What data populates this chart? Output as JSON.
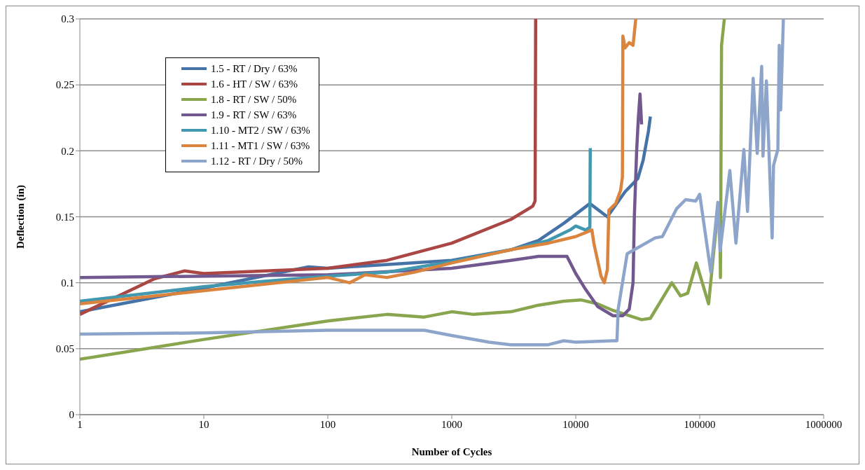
{
  "chart_data": {
    "type": "line",
    "xlabel": "Number of Cycles",
    "ylabel": "Deflection (in)",
    "log": "x",
    "grid": "y",
    "legend": "top left",
    "marker": "none",
    "line_style": "solid",
    "xlim": [
      1,
      1000000
    ],
    "xticks": [
      1,
      10,
      100,
      1000,
      10000,
      100000,
      1000000
    ],
    "ylim": [
      0,
      0.3
    ],
    "yticks": [
      0,
      0.05,
      0.1,
      0.15,
      0.2,
      0.25,
      0.3
    ],
    "series": [
      {
        "name": "1.5 - RT / Dry / 63%",
        "color": "#4572a7",
        "x": [
          1,
          10,
          70,
          100,
          1000,
          3000,
          5000,
          8000,
          13000,
          18000,
          25000,
          31700,
          35000,
          38600,
          40000
        ],
        "values": [
          0.078,
          0.096,
          0.112,
          0.111,
          0.117,
          0.125,
          0.132,
          0.145,
          0.16,
          0.15,
          0.169,
          0.179,
          0.193,
          0.215,
          0.226
        ]
      },
      {
        "name": "1.6 - HT / SW / 63%",
        "color": "#aa4643",
        "x": [
          1,
          4,
          7,
          10,
          100,
          300,
          1000,
          3000,
          4500,
          4700,
          4750
        ],
        "values": [
          0.076,
          0.103,
          0.109,
          0.107,
          0.111,
          0.117,
          0.13,
          0.148,
          0.158,
          0.162,
          0.3
        ]
      },
      {
        "name": "1.8 - RT / SW / 50%",
        "color": "#89a54e",
        "x": [
          1,
          10,
          100,
          300,
          600,
          1000,
          1500,
          3000,
          5000,
          8000,
          11000,
          15000,
          20000,
          34000,
          40000,
          59600,
          70000,
          80000,
          94000,
          118000,
          140000,
          145000,
          147000,
          150000,
          158000
        ],
        "values": [
          0.042,
          0.057,
          0.071,
          0.076,
          0.074,
          0.078,
          0.076,
          0.078,
          0.083,
          0.086,
          0.087,
          0.084,
          0.079,
          0.072,
          0.073,
          0.1,
          0.09,
          0.092,
          0.115,
          0.084,
          0.155,
          0.16,
          0.104,
          0.28,
          0.3
        ]
      },
      {
        "name": "1.9 - RT / SW / 63%",
        "color": "#71588f",
        "x": [
          1,
          100,
          1000,
          3000,
          5000,
          8500,
          10000,
          12000,
          15000,
          20000,
          24000,
          27000,
          29000,
          29700,
          31000,
          32000,
          33000,
          34000
        ],
        "values": [
          0.104,
          0.106,
          0.111,
          0.117,
          0.12,
          0.12,
          0.107,
          0.095,
          0.082,
          0.075,
          0.075,
          0.08,
          0.1,
          0.15,
          0.2,
          0.225,
          0.243,
          0.22
        ]
      },
      {
        "name": "1.10 - MT2 / SW / 63%",
        "color": "#4198af",
        "x": [
          1,
          10,
          30,
          100,
          300,
          1000,
          3000,
          6000,
          9000,
          10000,
          12000,
          13000,
          13100
        ],
        "values": [
          0.086,
          0.097,
          0.101,
          0.105,
          0.108,
          0.116,
          0.125,
          0.132,
          0.14,
          0.143,
          0.14,
          0.142,
          0.202
        ]
      },
      {
        "name": "1.11 - MT1 / SW / 63%",
        "color": "#db843d",
        "x": [
          1,
          10,
          100,
          150,
          200,
          300,
          500,
          1000,
          3000,
          6000,
          10000,
          13500,
          14000,
          16000,
          17000,
          18000,
          18500,
          21000,
          23000,
          23800,
          24000,
          25000,
          27000,
          29000,
          30500
        ],
        "values": [
          0.084,
          0.094,
          0.104,
          0.1,
          0.106,
          0.104,
          0.108,
          0.115,
          0.125,
          0.13,
          0.135,
          0.14,
          0.13,
          0.105,
          0.1,
          0.11,
          0.155,
          0.16,
          0.17,
          0.18,
          0.287,
          0.278,
          0.282,
          0.28,
          0.3
        ]
      },
      {
        "name": "1.12 - RT / Dry / 50%",
        "color": "#8ea5cb",
        "x": [
          1,
          10,
          100,
          600,
          1000,
          2000,
          3000,
          6000,
          8000,
          10000,
          20000,
          21500,
          22000,
          26000,
          43700,
          50000,
          65000,
          77000,
          93000,
          100000,
          123000,
          140000,
          146000,
          175000,
          196000,
          227000,
          243000,
          270000,
          291000,
          316000,
          324000,
          345000,
          384000,
          394000,
          427000,
          438000,
          450000,
          473000
        ],
        "values": [
          0.061,
          0.062,
          0.064,
          0.064,
          0.06,
          0.055,
          0.053,
          0.053,
          0.056,
          0.055,
          0.056,
          0.056,
          0.08,
          0.122,
          0.134,
          0.135,
          0.156,
          0.163,
          0.162,
          0.167,
          0.108,
          0.161,
          0.124,
          0.185,
          0.13,
          0.201,
          0.154,
          0.255,
          0.198,
          0.264,
          0.196,
          0.253,
          0.134,
          0.189,
          0.201,
          0.28,
          0.231,
          0.3
        ]
      }
    ]
  }
}
